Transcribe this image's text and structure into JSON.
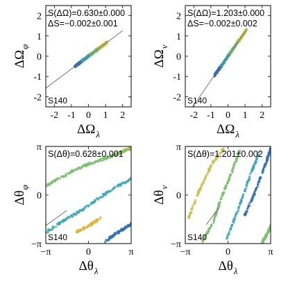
{
  "chart_data": [
    {
      "type": "scatter",
      "panel": "top-left",
      "xlabel": "ΔΩ_λ",
      "ylabel": "ΔΩ_φ",
      "xlim": [
        -2.5,
        2.5
      ],
      "ylim": [
        -2.5,
        2.5
      ],
      "xticks": [
        "-2",
        "-1",
        "0",
        "1",
        "2"
      ],
      "yticks": [
        "2",
        "1",
        "0",
        "-1",
        "-2"
      ],
      "xtick_values": [
        -2,
        -1,
        0,
        1,
        2
      ],
      "ytick_values": [
        2,
        1,
        0,
        -1,
        -2
      ],
      "annotations": [
        "S(ΔΩ)=0.630±0.000",
        "ΔS=−0.002±0.001"
      ],
      "tag": "S140",
      "fit_line": {
        "slope": 0.63,
        "intercept": 0,
        "x": [
          -2.5,
          2.0
        ]
      },
      "series": [
        {
          "color": "#2e6fb5",
          "x": [
            -0.8,
            -0.6,
            -0.4
          ],
          "y": [
            -0.5,
            -0.38,
            -0.25
          ]
        },
        {
          "color": "#3ba7b8",
          "x": [
            -0.4,
            -0.15,
            0.1
          ],
          "y": [
            -0.25,
            -0.1,
            0.06
          ]
        },
        {
          "color": "#7cbf6e",
          "x": [
            0.1,
            0.35,
            0.6
          ],
          "y": [
            0.06,
            0.22,
            0.38
          ]
        },
        {
          "color": "#c9c04c",
          "x": [
            0.6,
            0.85,
            1.1
          ],
          "y": [
            0.38,
            0.54,
            0.69
          ]
        }
      ]
    },
    {
      "type": "scatter",
      "panel": "top-right",
      "xlabel": "ΔΩ_λ",
      "ylabel": "ΔΩ_ν",
      "xlim": [
        -2.5,
        2.5
      ],
      "ylim": [
        -2.5,
        2.5
      ],
      "xticks": [
        "-2",
        "-1",
        "0",
        "1",
        "2"
      ],
      "yticks": [
        "2",
        "1",
        "0",
        "-1",
        "-2"
      ],
      "xtick_values": [
        -2,
        -1,
        0,
        1,
        2
      ],
      "ytick_values": [
        2,
        1,
        0,
        -1,
        -2
      ],
      "annotations": [
        "S(ΔΩ)=1.203±0.000",
        "ΔS=−0.002±0.002"
      ],
      "tag": "S140",
      "fit_line": {
        "slope": 1.203,
        "intercept": 0,
        "x": [
          -2.1,
          1.1
        ]
      },
      "series": [
        {
          "color": "#2e6fb5",
          "x": [
            -0.8,
            -0.6,
            -0.4
          ],
          "y": [
            -0.96,
            -0.72,
            -0.48
          ]
        },
        {
          "color": "#3ba7b8",
          "x": [
            -0.4,
            -0.15,
            0.1
          ],
          "y": [
            -0.48,
            -0.18,
            0.12
          ]
        },
        {
          "color": "#7cbf6e",
          "x": [
            0.1,
            0.35,
            0.6
          ],
          "y": [
            0.12,
            0.42,
            0.72
          ]
        },
        {
          "color": "#c9c04c",
          "x": [
            0.6,
            0.85,
            1.1
          ],
          "y": [
            0.72,
            1.02,
            1.32
          ]
        }
      ]
    },
    {
      "type": "scatter",
      "panel": "bottom-left",
      "xlabel": "Δθ_λ",
      "ylabel": "Δθ_φ",
      "xlim": [
        -3.1416,
        3.1416
      ],
      "ylim": [
        -3.1416,
        3.1416
      ],
      "xticks": [
        "−π",
        "0",
        "π"
      ],
      "yticks": [
        "π",
        "0",
        "−π"
      ],
      "xtick_values": [
        -3.1416,
        0,
        3.1416
      ],
      "ytick_values": [
        3.1416,
        0,
        -3.1416
      ],
      "annotations": [
        "S(Δθ)=0.628±0.001"
      ],
      "tag": "S140",
      "fit_line": {
        "slope": 0.628,
        "intercept": 0,
        "x": [
          -3.1416,
          -1.6
        ]
      },
      "series": [
        {
          "color": "#c9c04c",
          "x": [
            1.9,
            2.5,
            3.14
          ],
          "y": [
            2.6,
            2.8,
            3.1
          ]
        },
        {
          "color": "#7cbf6e",
          "x": [
            -3.14,
            -1.5,
            0.0,
            1.5,
            3.14
          ],
          "y": [
            0.6,
            1.4,
            2.0,
            2.45,
            3.0
          ]
        },
        {
          "color": "#3ba7b8",
          "x": [
            -3.14,
            -1.5,
            0.0,
            1.5,
            3.14
          ],
          "y": [
            -2.4,
            -1.5,
            -0.7,
            0.25,
            1.05
          ]
        },
        {
          "color": "#e0b43a",
          "x": [
            -0.9,
            0.0,
            0.9
          ],
          "y": [
            -2.4,
            -2.0,
            -1.5
          ]
        },
        {
          "color": "#2e6fb5",
          "x": [
            1.2,
            2.2,
            3.14
          ],
          "y": [
            -3.0,
            -2.4,
            -1.85
          ]
        }
      ]
    },
    {
      "type": "scatter",
      "panel": "bottom-right",
      "xlabel": "Δθ_λ",
      "ylabel": "Δθ_ν",
      "xlim": [
        -3.1416,
        3.1416
      ],
      "ylim": [
        -3.1416,
        3.1416
      ],
      "xticks": [
        "−π",
        "0",
        "π"
      ],
      "yticks": [
        "π",
        "0",
        "−π"
      ],
      "xtick_values": [
        -3.1416,
        0,
        3.1416
      ],
      "ytick_values": [
        3.1416,
        0,
        -3.1416
      ],
      "annotations": [
        "S(Δθ)=1.201±0.002"
      ],
      "tag": "S140",
      "fit_line": {
        "slope": 1.201,
        "intercept": 0,
        "x": [
          -1.6,
          -0.6
        ]
      },
      "series": [
        {
          "color": "#2e6fb5",
          "x": [
            1.2,
            2.0,
            2.8,
            3.14
          ],
          "y": [
            -1.4,
            0.2,
            2.1,
            3.0
          ]
        },
        {
          "color": "#3ba7b8",
          "x": [
            -0.1,
            0.8,
            1.6,
            2.3
          ],
          "y": [
            -2.9,
            -0.8,
            1.2,
            2.7
          ]
        },
        {
          "color": "#7cbf6e",
          "x": [
            -1.9,
            -1.1,
            -0.5,
            0.2,
            0.9
          ],
          "y": [
            -3.0,
            -1.8,
            -0.2,
            1.3,
            2.95
          ]
        },
        {
          "color": "#c9c04c",
          "x": [
            -2.9,
            -2.1,
            -1.2,
            -0.3
          ],
          "y": [
            -1.5,
            0.3,
            2.0,
            3.0
          ]
        },
        {
          "color": "#7cbf6e",
          "x": [
            2.5,
            2.9,
            3.14
          ],
          "y": [
            -3.1,
            -2.5,
            -2.0
          ]
        }
      ]
    }
  ]
}
